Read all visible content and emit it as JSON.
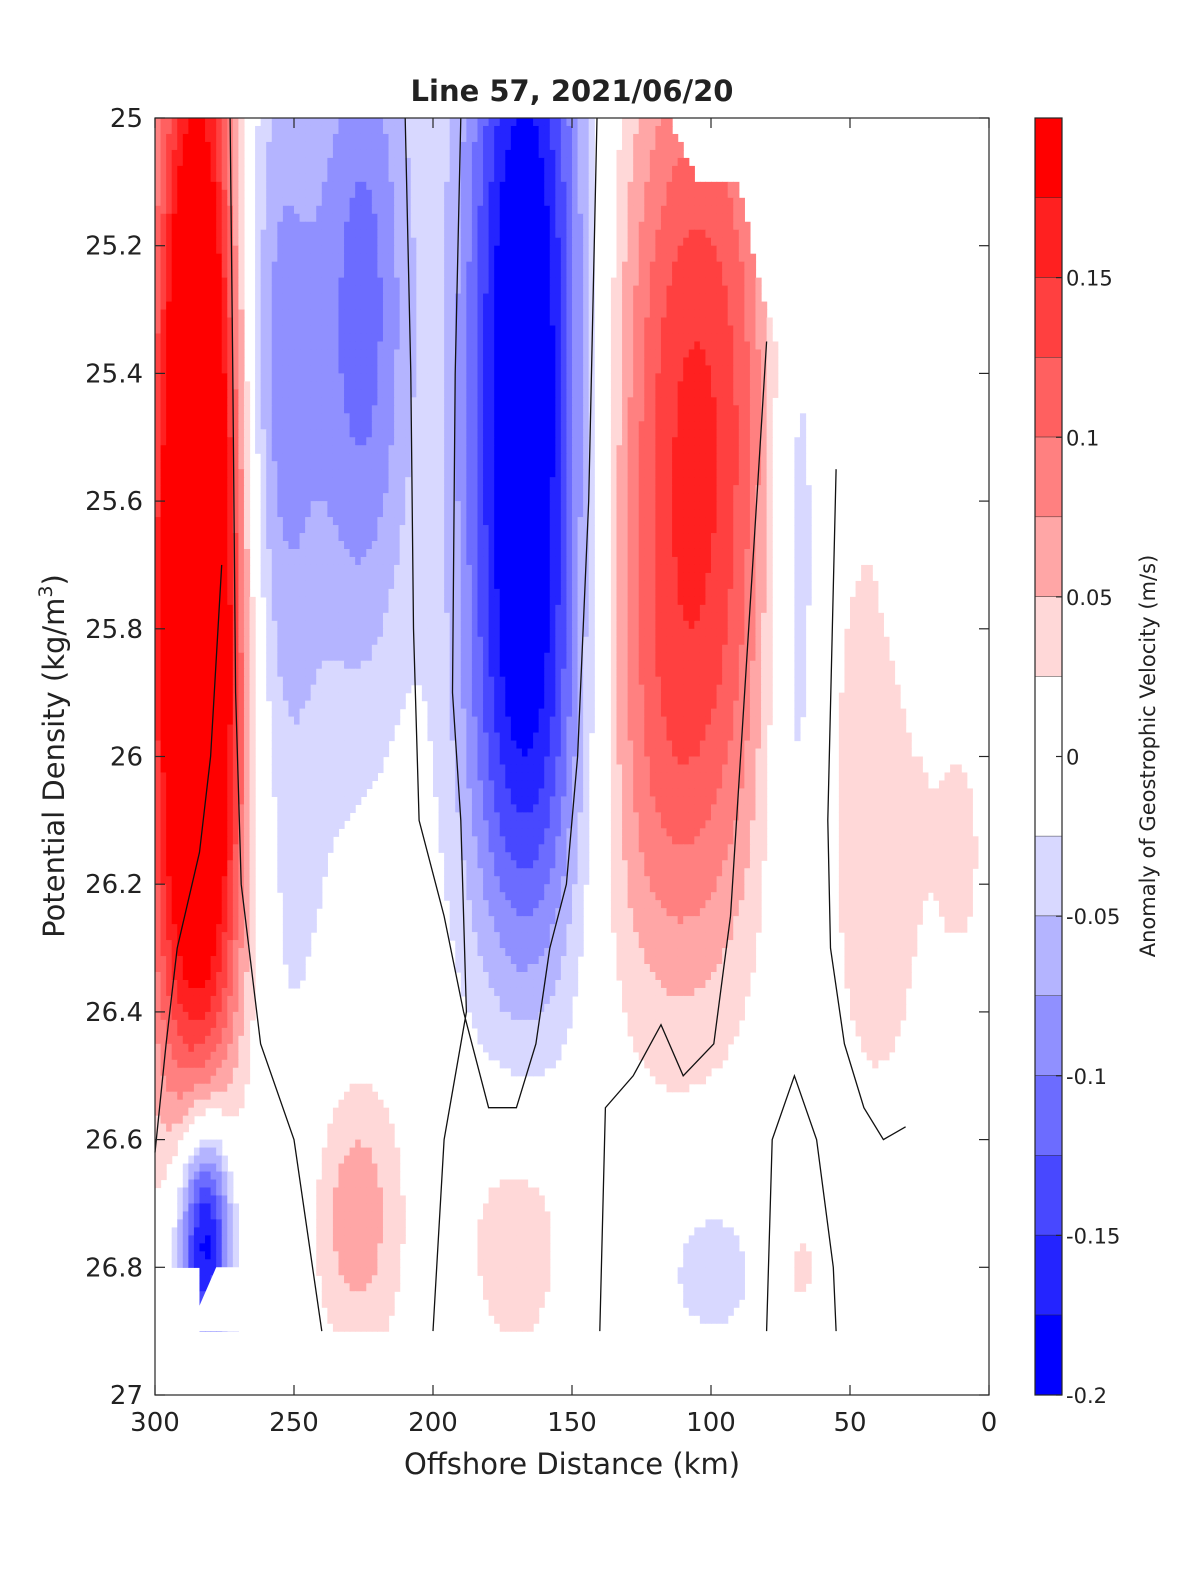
{
  "chart_data": {
    "type": "heatmap",
    "title": "Line 57, 2021/06/20",
    "xlabel": "Offshore Distance (km)",
    "ylabel_prefix": "Potential Density (kg/m",
    "ylabel_sup": "3",
    "ylabel_suffix": ")",
    "colorbar_label": "Anomaly of Geostrophic Velocity (m/s)",
    "xlim": [
      300,
      0
    ],
    "ylim": [
      25,
      27
    ],
    "x_ticks": [
      300,
      250,
      200,
      150,
      100,
      50,
      0
    ],
    "x_tick_labels": [
      "300",
      "250",
      "200",
      "150",
      "100",
      "50",
      "0"
    ],
    "y_ticks": [
      25,
      25.2,
      25.4,
      25.6,
      25.8,
      26,
      26.2,
      26.4,
      26.6,
      26.8,
      27
    ],
    "y_tick_labels": [
      "25",
      "25.2",
      "25.4",
      "25.6",
      "25.8",
      "26",
      "26.2",
      "26.4",
      "26.6",
      "26.8",
      "27"
    ],
    "colorbar_ticks": [
      0.15,
      0.1,
      0.05,
      0,
      -0.05,
      -0.1,
      -0.15,
      -0.2
    ],
    "colorbar_tick_labels": [
      "0.15",
      "0.1",
      "0.05",
      "0",
      "-0.05",
      "-0.1",
      "-0.15",
      "-0.2"
    ],
    "color_range": [
      -0.2,
      0.2
    ],
    "color_levels": [
      {
        "range": [
          0.175,
          0.2
        ],
        "color": "#ff0000"
      },
      {
        "range": [
          0.15,
          0.175
        ],
        "color": "#ff2020"
      },
      {
        "range": [
          0.125,
          0.15
        ],
        "color": "#ff4040"
      },
      {
        "range": [
          0.1,
          0.125
        ],
        "color": "#ff6060"
      },
      {
        "range": [
          0.075,
          0.1
        ],
        "color": "#ff8080"
      },
      {
        "range": [
          0.05,
          0.075
        ],
        "color": "#ffa6a6"
      },
      {
        "range": [
          0.025,
          0.05
        ],
        "color": "#ffd8d8"
      },
      {
        "range": [
          -0.025,
          0.025
        ],
        "color": "#ffffff"
      },
      {
        "range": [
          -0.05,
          -0.025
        ],
        "color": "#d8d8ff"
      },
      {
        "range": [
          -0.075,
          -0.05
        ],
        "color": "#b4b4ff"
      },
      {
        "range": [
          -0.1,
          -0.075
        ],
        "color": "#9090ff"
      },
      {
        "range": [
          -0.125,
          -0.1
        ],
        "color": "#6c6cff"
      },
      {
        "range": [
          -0.15,
          -0.125
        ],
        "color": "#4848ff"
      },
      {
        "range": [
          -0.175,
          -0.15
        ],
        "color": "#2424ff"
      },
      {
        "range": [
          -0.2,
          -0.175
        ],
        "color": "#0000ff"
      }
    ],
    "features": [
      {
        "x": 285,
        "y": 25.45,
        "sx": 11,
        "sy": 0.55,
        "v": 0.24
      },
      {
        "x": 283,
        "y": 25.95,
        "sx": 13,
        "sy": 0.42,
        "v": 0.13
      },
      {
        "x": 285,
        "y": 26.25,
        "sx": 16,
        "sy": 0.3,
        "v": 0.05
      },
      {
        "x": 257,
        "y": 25.35,
        "sx": 11,
        "sy": 0.4,
        "v": -0.075
      },
      {
        "x": 258,
        "y": 26.1,
        "sx": 15,
        "sy": 0.55,
        "v": -0.04
      },
      {
        "x": 225,
        "y": 25.3,
        "sx": 13,
        "sy": 0.42,
        "v": -0.11
      },
      {
        "x": 167,
        "y": 25.35,
        "sx": 16,
        "sy": 0.55,
        "v": -0.22
      },
      {
        "x": 165,
        "y": 26.0,
        "sx": 17,
        "sy": 0.28,
        "v": -0.07
      },
      {
        "x": 105,
        "y": 25.45,
        "sx": 22,
        "sy": 0.45,
        "v": 0.15
      },
      {
        "x": 115,
        "y": 26.05,
        "sx": 22,
        "sy": 0.3,
        "v": 0.06
      },
      {
        "x": 70,
        "y": 25.65,
        "sx": 8,
        "sy": 0.5,
        "v": -0.07
      },
      {
        "x": 40,
        "y": 26.1,
        "sx": 14,
        "sy": 0.35,
        "v": 0.045
      },
      {
        "x": 10,
        "y": 26.15,
        "sx": 7,
        "sy": 0.15,
        "v": 0.03
      },
      {
        "x": 282,
        "y": 26.75,
        "sx": 7,
        "sy": 0.13,
        "v": -0.22
      },
      {
        "x": 228,
        "y": 26.72,
        "sx": 12,
        "sy": 0.16,
        "v": 0.07
      },
      {
        "x": 262,
        "y": 26.75,
        "sx": 8,
        "sy": 0.1,
        "v": 0.03
      },
      {
        "x": 170,
        "y": 26.75,
        "sx": 14,
        "sy": 0.15,
        "v": 0.05
      },
      {
        "x": 100,
        "y": 26.8,
        "sx": 14,
        "sy": 0.1,
        "v": -0.04
      },
      {
        "x": 68,
        "y": 26.8,
        "sx": 6,
        "sy": 0.08,
        "v": 0.035
      }
    ],
    "data_extent": [
      [
        300,
        25
      ],
      [
        132,
        25
      ],
      [
        115,
        25
      ],
      [
        105,
        25.1
      ],
      [
        90,
        25.1
      ],
      [
        83,
        25.25
      ],
      [
        80,
        25.3
      ],
      [
        74,
        25.4
      ],
      [
        57,
        25.55
      ],
      [
        50,
        25.55
      ],
      [
        30,
        25.95
      ],
      [
        27,
        26.0
      ],
      [
        5,
        26.0
      ],
      [
        5,
        26.9
      ],
      [
        275,
        26.9
      ],
      [
        285,
        26.9
      ],
      [
        283,
        26.8
      ],
      [
        300,
        26.8
      ]
    ],
    "nan_regions": [
      [
        [
          278,
          26.8
        ],
        [
          262,
          26.8
        ],
        [
          255,
          26.9
        ],
        [
          288,
          26.9
        ]
      ]
    ],
    "zero_contours": [
      [
        [
          273,
          25
        ],
        [
          272,
          25.4
        ],
        [
          271,
          25.9
        ],
        [
          269,
          26.2
        ],
        [
          262,
          26.45
        ],
        [
          250,
          26.6
        ],
        [
          240,
          26.9
        ]
      ],
      [
        [
          300,
          26.62
        ],
        [
          296,
          26.45
        ],
        [
          292,
          26.3
        ],
        [
          284,
          26.15
        ],
        [
          280,
          26.0
        ],
        [
          276,
          25.7
        ]
      ],
      [
        [
          210,
          25
        ],
        [
          208,
          25.4
        ],
        [
          207,
          25.8
        ],
        [
          205,
          26.1
        ],
        [
          196,
          26.25
        ],
        [
          189,
          26.4
        ],
        [
          180,
          26.55
        ],
        [
          170,
          26.55
        ],
        [
          163,
          26.45
        ],
        [
          158,
          26.3
        ],
        [
          152,
          26.2
        ],
        [
          148,
          26.0
        ],
        [
          144,
          25.6
        ],
        [
          141,
          25.0
        ]
      ],
      [
        [
          190,
          25.0
        ],
        [
          192,
          25.4
        ],
        [
          193,
          25.9
        ],
        [
          190,
          26.1
        ],
        [
          188,
          26.4
        ],
        [
          196,
          26.6
        ],
        [
          200,
          26.9
        ]
      ],
      [
        [
          140,
          26.9
        ],
        [
          138,
          26.55
        ],
        [
          128,
          26.5
        ],
        [
          118,
          26.42
        ],
        [
          110,
          26.5
        ],
        [
          99,
          26.45
        ],
        [
          93,
          26.25
        ],
        [
          85,
          25.7
        ],
        [
          80,
          25.35
        ]
      ],
      [
        [
          80,
          26.9
        ],
        [
          78,
          26.6
        ],
        [
          70,
          26.5
        ],
        [
          62,
          26.6
        ],
        [
          56,
          26.8
        ],
        [
          55,
          26.9
        ]
      ],
      [
        [
          55,
          25.55
        ],
        [
          58,
          26.1
        ],
        [
          57,
          26.3
        ],
        [
          52,
          26.45
        ],
        [
          45,
          26.55
        ],
        [
          38,
          26.6
        ],
        [
          30,
          26.58
        ]
      ]
    ]
  }
}
